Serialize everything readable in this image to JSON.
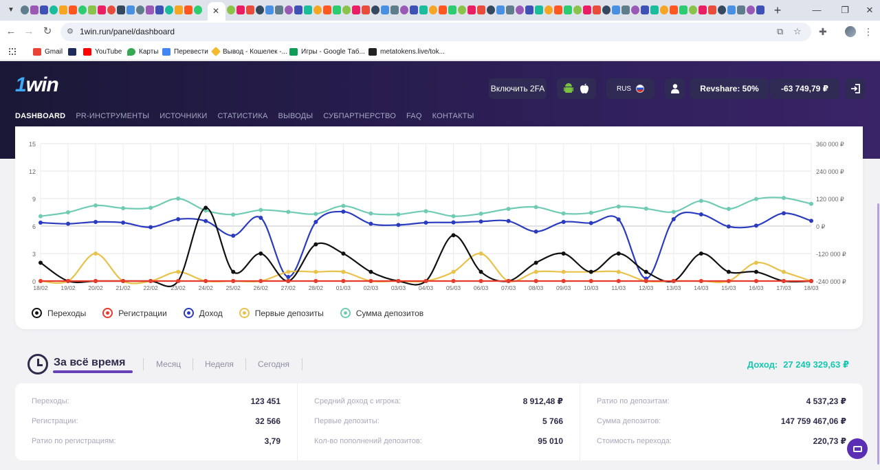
{
  "browser": {
    "url": "1win.run/panel/dashboard",
    "bookmarks": [
      {
        "label": "Gmail",
        "color": "#ea4335"
      },
      {
        "label": "",
        "color": "#1e2a5a"
      },
      {
        "label": "YouTube",
        "color": "#ff0000"
      },
      {
        "label": "Карты",
        "color": "#34a853"
      },
      {
        "label": "Перевести",
        "color": "#4285f4"
      },
      {
        "label": "Вывод - Кошелек -...",
        "color": "#f3ba2f"
      },
      {
        "label": "Игры - Google Таб...",
        "color": "#0f9d58"
      },
      {
        "label": "metatokens.live/tok...",
        "color": "#222222"
      }
    ]
  },
  "header": {
    "logo_one": "1",
    "logo_win": "win",
    "btn_2fa": "Включить 2FA",
    "lang": "RUS",
    "revshare": "Revshare: 50%",
    "balance": "-63 749,79 ₽",
    "nav": [
      "DASHBOARD",
      "PR-ИНСТРУМЕНТЫ",
      "ИСТОЧНИКИ",
      "СТАТИСТИКА",
      "ВЫВОДЫ",
      "СУБПАРТНЕРСТВО",
      "FAQ",
      "КОНТАКТЫ"
    ]
  },
  "chart_data": {
    "type": "line",
    "categories": [
      "18/02",
      "19/02",
      "20/02",
      "21/02",
      "22/02",
      "23/02",
      "24/02",
      "25/02",
      "26/02",
      "27/02",
      "28/02",
      "01/03",
      "02/03",
      "03/03",
      "04/03",
      "05/03",
      "06/03",
      "07/03",
      "08/03",
      "09/03",
      "10/03",
      "11/03",
      "12/03",
      "13/03",
      "14/03",
      "15/03",
      "16/03",
      "17/03",
      "18/03"
    ],
    "y_left": {
      "ticks": [
        "15",
        "12",
        "9",
        "6",
        "3",
        "0"
      ],
      "min": 0,
      "max": 15
    },
    "y_right": {
      "ticks": [
        "360 000 ₽",
        "240 000 ₽",
        "120 000 ₽",
        "0 ₽",
        "-120 000 ₽",
        "-240 000 ₽"
      ],
      "min": -240000,
      "max": 360000
    },
    "grid": true,
    "legend_position": "bottom-left",
    "series": [
      {
        "name": "Переходы",
        "color": "#111111",
        "axis": "left",
        "values": [
          2,
          0,
          0,
          0,
          0,
          0,
          8,
          1,
          3,
          0,
          4,
          3,
          1,
          0,
          0,
          5,
          1,
          0,
          2,
          3,
          1,
          3,
          1,
          0,
          3,
          1,
          1,
          0,
          0
        ]
      },
      {
        "name": "Регистрации",
        "color": "#e8392a",
        "axis": "left",
        "values": [
          0,
          0,
          0,
          0,
          0,
          0,
          0,
          0,
          0,
          0,
          0,
          0,
          0,
          0,
          0,
          0,
          0,
          0,
          0,
          0,
          0,
          0,
          0,
          0,
          0,
          0,
          0,
          0,
          0
        ]
      },
      {
        "name": "Доход",
        "color": "#2a3bbf",
        "axis": "right",
        "values": [
          15000,
          10000,
          18000,
          15000,
          -5000,
          30000,
          22000,
          -42000,
          36000,
          -222000,
          18000,
          63000,
          10000,
          5000,
          15000,
          16000,
          20000,
          22000,
          -24000,
          18000,
          13000,
          29000,
          -229000,
          30000,
          51000,
          -2000,
          2000,
          56000,
          23000
        ]
      },
      {
        "name": "Первые депозиты",
        "color": "#e8c24a",
        "axis": "left",
        "values": [
          0,
          0,
          3,
          0,
          0,
          1,
          0,
          0,
          0,
          1,
          1,
          1,
          0,
          0,
          0,
          1,
          3,
          0,
          1,
          1,
          1,
          1,
          0,
          0,
          0,
          0,
          2,
          1,
          0
        ]
      },
      {
        "name": "Сумма депозитов",
        "color": "#6fcbb4",
        "axis": "right",
        "values": [
          43000,
          60000,
          90000,
          78000,
          80000,
          120000,
          68000,
          50000,
          70000,
          62000,
          53000,
          88000,
          55000,
          51000,
          65000,
          43000,
          54000,
          75000,
          83000,
          55000,
          58000,
          85000,
          76000,
          62000,
          110000,
          75000,
          118000,
          123000,
          97000
        ]
      }
    ]
  },
  "period": {
    "active": "За всё время",
    "tabs": [
      "Месяц",
      "Неделя",
      "Сегодня"
    ],
    "income_label": "Доход:",
    "income_value": "27 249 329,63 ₽"
  },
  "stats": [
    [
      {
        "label": "Переходы:",
        "value": "123 451"
      },
      {
        "label": "Регистрации:",
        "value": "32 566"
      },
      {
        "label": "Ратио по регистрациям:",
        "value": "3,79"
      }
    ],
    [
      {
        "label": "Средний доход с игрока:",
        "value": "8 912,48 ₽"
      },
      {
        "label": "Первые депозиты:",
        "value": "5 766"
      },
      {
        "label": "Кол-во пополнений депозитов:",
        "value": "95 010"
      }
    ],
    [
      {
        "label": "Ратио по депозитам:",
        "value": "4 537,23 ₽"
      },
      {
        "label": "Сумма депозитов:",
        "value": "147 759 467,06 ₽"
      },
      {
        "label": "Стоимость перехода:",
        "value": "220,73 ₽"
      }
    ]
  ]
}
